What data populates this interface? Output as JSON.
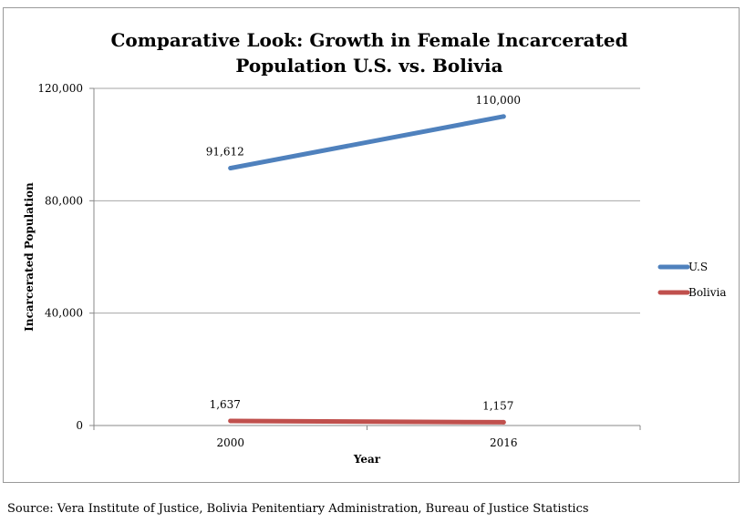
{
  "chart_data": {
    "type": "line",
    "title": "Comparative Look: Growth in Female Incarcerated Population U.S. vs. Bolivia",
    "xlabel": "Year",
    "ylabel": "Incarcerated Population",
    "categories": [
      "2000",
      "2016"
    ],
    "ylim": [
      0,
      120000
    ],
    "yticks": [
      0,
      40000,
      80000,
      120000
    ],
    "ytick_labels": [
      "0",
      "40,000",
      "80,000",
      "120,000"
    ],
    "grid": true,
    "legend_position": "right",
    "series": [
      {
        "name": "U.S",
        "color": "#4f81bd",
        "values": [
          91612,
          110000
        ],
        "labels": [
          "91,612",
          "110,000"
        ]
      },
      {
        "name": "Bolivia",
        "color": "#c0504d",
        "values": [
          1637,
          1157
        ],
        "labels": [
          "1,637",
          "1,157"
        ]
      }
    ]
  },
  "source": "Source: Vera Institute of Justice, Bolivia Penitentiary Administration, Bureau of Justice Statistics"
}
